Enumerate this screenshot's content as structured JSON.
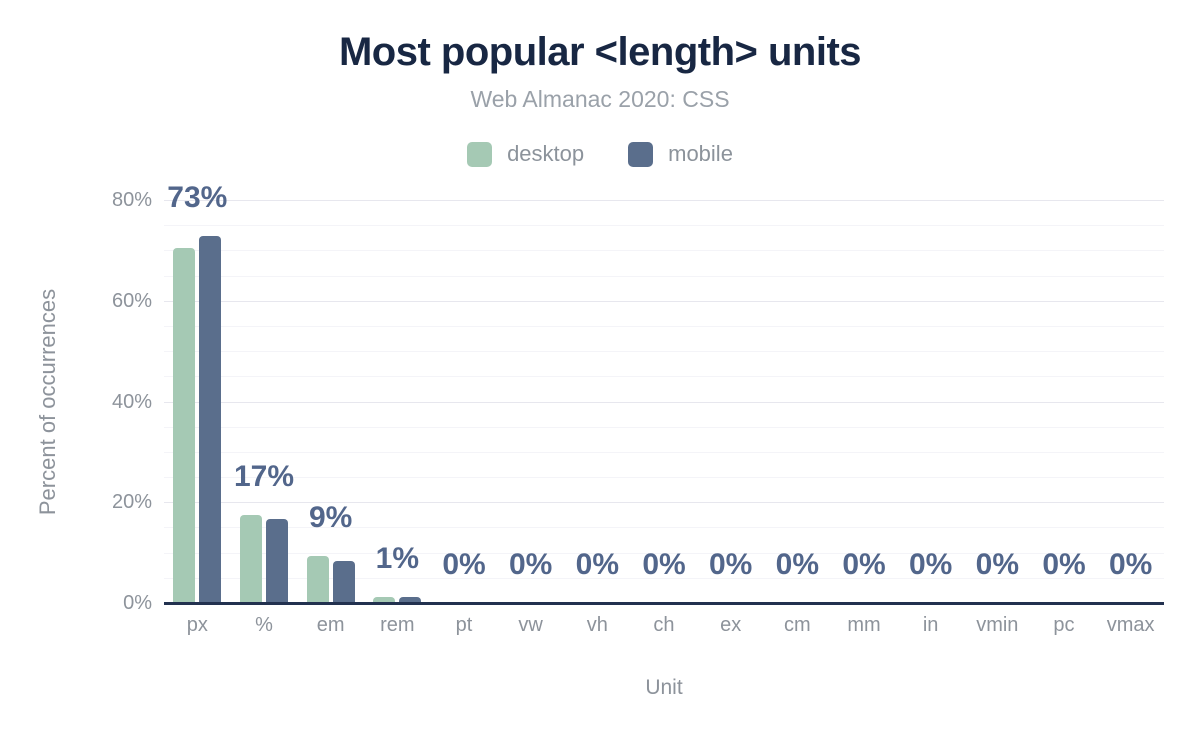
{
  "header": {
    "title": "Most popular <length> units",
    "subtitle": "Web Almanac 2020: CSS"
  },
  "axes": {
    "x_title": "Unit",
    "y_title": "Percent of occurrences",
    "y_tick_labels": [
      "0%",
      "20%",
      "40%",
      "60%",
      "80%"
    ]
  },
  "colors": {
    "desktop": "#a5c9b4",
    "mobile": "#5a6e8c",
    "title": "#182743",
    "data_label": "#52668b",
    "axis_text": "#8d939b",
    "axis_line": "#22314f"
  },
  "chart_data": {
    "type": "bar",
    "title": "Most popular <length> units",
    "subtitle": "Web Almanac 2020: CSS",
    "xlabel": "Unit",
    "ylabel": "Percent of occurrences",
    "ylim": [
      0,
      80
    ],
    "yticks_percent": [
      0,
      20,
      40,
      60,
      80
    ],
    "minor_gridlines_percent": [
      5,
      10,
      15,
      25,
      30,
      35,
      45,
      50,
      55,
      65,
      70,
      75
    ],
    "grid": "horizontal major every 20%, faint minor every 5%",
    "legend_position": "top",
    "categories": [
      "px",
      "%",
      "em",
      "rem",
      "pt",
      "vw",
      "vh",
      "ch",
      "ex",
      "cm",
      "mm",
      "in",
      "vmin",
      "pc",
      "vmax"
    ],
    "series": [
      {
        "name": "desktop",
        "color": "#a5c9b4",
        "values": [
          70.5,
          17.4,
          9.4,
          1.1,
          0,
          0,
          0,
          0,
          0,
          0,
          0,
          0,
          0,
          0,
          0
        ]
      },
      {
        "name": "mobile",
        "color": "#5a6e8c",
        "values": [
          72.9,
          16.6,
          8.4,
          1.2,
          0,
          0,
          0,
          0,
          0,
          0,
          0,
          0,
          0,
          0,
          0
        ]
      }
    ],
    "bar_labels": [
      "73%",
      "17%",
      "9%",
      "1%",
      "0%",
      "0%",
      "0%",
      "0%",
      "0%",
      "0%",
      "0%",
      "0%",
      "0%",
      "0%",
      "0%"
    ]
  }
}
